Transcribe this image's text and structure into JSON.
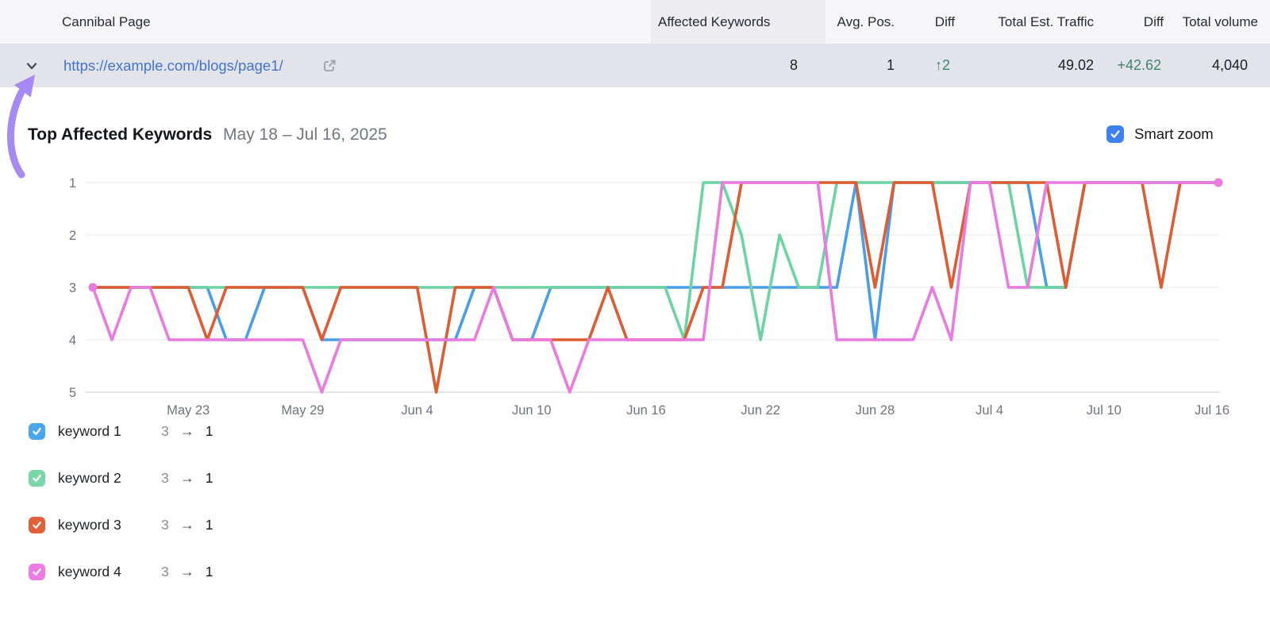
{
  "table": {
    "columns": {
      "cannibal_page": "Cannibal Page",
      "affected_keywords": "Affected Keywords",
      "avg_pos": "Avg. Pos.",
      "diff_pos": "Diff",
      "total_est_traffic": "Total Est. Traffic",
      "diff_traffic": "Diff",
      "total_volume": "Total volume"
    },
    "row": {
      "url": "https://example.com/blogs/page1/",
      "affected_keywords": "8",
      "avg_pos": "1",
      "diff_pos": "↑2",
      "total_est_traffic": "49.02",
      "diff_traffic": "+42.62",
      "total_volume": "4,040"
    }
  },
  "panel": {
    "title": "Top Affected Keywords",
    "date_range": "May 18 – Jul 16, 2025",
    "smart_zoom_label": "Smart zoom",
    "smart_zoom_checked": true
  },
  "chart_data": {
    "type": "line",
    "x_start_label": "May 18",
    "x_tick_days": [
      5,
      11,
      17,
      23,
      29,
      35,
      41,
      47,
      53,
      59
    ],
    "x_tick_labels": [
      "May 23",
      "May 29",
      "Jun 4",
      "Jun 10",
      "Jun 16",
      "Jun 22",
      "Jun 28",
      "Jul 4",
      "Jul 10",
      "Jul 16"
    ],
    "y_ticks": [
      "1",
      "2",
      "3",
      "4",
      "5"
    ],
    "y_axis_inverted": true,
    "grid": true,
    "series": [
      {
        "name": "keyword 1",
        "color": "#4A9DE8",
        "values": [
          3,
          3,
          3,
          3,
          3,
          3,
          3,
          4,
          4,
          3,
          3,
          3,
          4,
          4,
          4,
          4,
          4,
          4,
          4,
          4,
          3,
          3,
          4,
          4,
          3,
          3,
          3,
          3,
          3,
          3,
          3,
          3,
          3,
          3,
          3,
          3,
          3,
          3,
          3,
          3,
          1,
          4,
          1,
          1,
          1,
          1,
          1,
          1,
          1,
          1,
          3,
          3,
          1,
          1,
          1,
          1,
          1,
          1,
          1,
          1
        ]
      },
      {
        "name": "keyword 2",
        "color": "#6CD4A3",
        "values": [
          3,
          3,
          3,
          3,
          3,
          3,
          3,
          3,
          3,
          3,
          3,
          3,
          3,
          3,
          3,
          3,
          3,
          3,
          3,
          3,
          3,
          3,
          3,
          3,
          3,
          3,
          3,
          3,
          3,
          3,
          3,
          4,
          1,
          1,
          2,
          4,
          2,
          3,
          3,
          1,
          1,
          1,
          1,
          1,
          1,
          1,
          1,
          1,
          1,
          3,
          3,
          3,
          1,
          1,
          1,
          1,
          1,
          1,
          1,
          1
        ]
      },
      {
        "name": "keyword 3",
        "color": "#E05B30",
        "values": [
          3,
          3,
          3,
          3,
          3,
          3,
          4,
          3,
          3,
          3,
          3,
          3,
          4,
          3,
          3,
          3,
          3,
          3,
          5,
          3,
          3,
          3,
          4,
          4,
          4,
          4,
          4,
          3,
          4,
          4,
          4,
          4,
          3,
          3,
          1,
          1,
          1,
          1,
          1,
          1,
          1,
          3,
          1,
          1,
          1,
          3,
          1,
          1,
          1,
          1,
          1,
          3,
          1,
          1,
          1,
          1,
          3,
          1,
          1,
          1
        ]
      },
      {
        "name": "keyword 4",
        "color": "#EA79E0",
        "marker_days": [
          0,
          59
        ],
        "values": [
          3,
          4,
          3,
          3,
          4,
          4,
          4,
          4,
          4,
          4,
          4,
          4,
          5,
          4,
          4,
          4,
          4,
          4,
          4,
          4,
          4,
          3,
          4,
          4,
          4,
          5,
          4,
          4,
          4,
          4,
          4,
          4,
          4,
          1,
          1,
          1,
          1,
          1,
          1,
          4,
          4,
          4,
          4,
          4,
          3,
          4,
          1,
          1,
          3,
          3,
          1,
          1,
          1,
          1,
          1,
          1,
          1,
          1,
          1,
          1
        ]
      }
    ]
  },
  "legend": {
    "items": [
      {
        "label": "keyword 1",
        "color": "#4AA6EB",
        "from": "3",
        "to": "1",
        "checked": true
      },
      {
        "label": "keyword 2",
        "color": "#79D7A7",
        "from": "3",
        "to": "1",
        "checked": true
      },
      {
        "label": "keyword 3",
        "color": "#E25F38",
        "from": "3",
        "to": "1",
        "checked": true
      },
      {
        "label": "keyword 4",
        "color": "#EC7BE4",
        "from": "3",
        "to": "1",
        "checked": true
      }
    ]
  },
  "annotation": {
    "arrow_color": "#A689F2"
  }
}
